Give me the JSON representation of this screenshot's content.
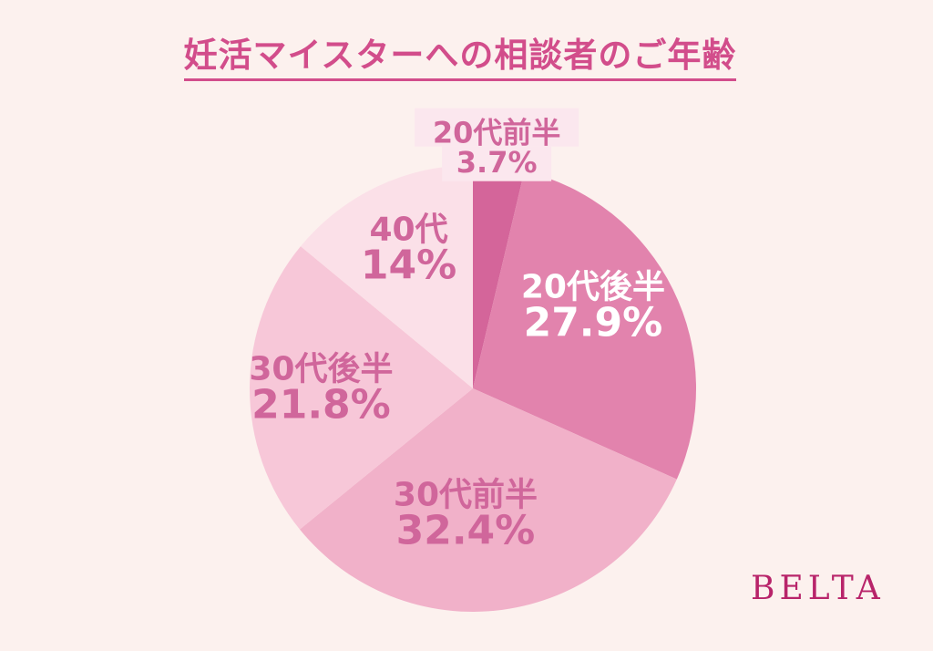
{
  "chart_data": {
    "type": "pie",
    "title": "妊活マイスターへの相談者のご年齢",
    "start": "top",
    "direction": "clockwise",
    "slices": [
      {
        "label": "20代前半",
        "value": 3.7,
        "value_label": "3.7%",
        "color": "#d4659a",
        "text_color": "#d0669b",
        "label_bg": "#fbe7ee"
      },
      {
        "label": "20代後半",
        "value": 27.9,
        "value_label": "27.9%",
        "color": "#e283ad",
        "text_color": "#ffffff"
      },
      {
        "label": "30代前半",
        "value": 32.4,
        "value_label": "32.4%",
        "color": "#f1b1c9",
        "text_color": "#d0669b"
      },
      {
        "label": "30代後半",
        "value": 21.8,
        "value_label": "21.8%",
        "color": "#f7c7d8",
        "text_color": "#d0669b"
      },
      {
        "label": "40代",
        "value": 14,
        "value_label": "14%",
        "color": "#fbe0e8",
        "text_color": "#d0669b"
      }
    ]
  },
  "brand": "BELTA"
}
